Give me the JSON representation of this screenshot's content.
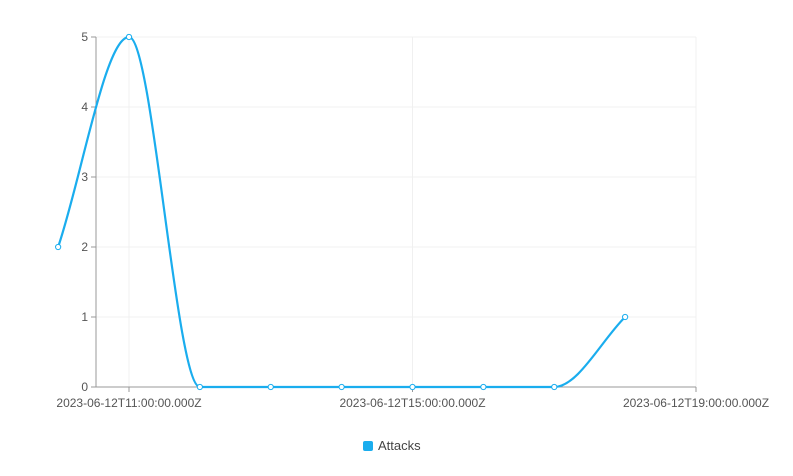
{
  "chart_data": {
    "type": "line",
    "title": "",
    "xlabel": "",
    "ylabel": "",
    "x": [
      "2023-06-12T10:00:00.000Z",
      "2023-06-12T11:00:00.000Z",
      "2023-06-12T12:00:00.000Z",
      "2023-06-12T13:00:00.000Z",
      "2023-06-12T14:00:00.000Z",
      "2023-06-12T15:00:00.000Z",
      "2023-06-12T16:00:00.000Z",
      "2023-06-12T17:00:00.000Z",
      "2023-06-12T18:00:00.000Z"
    ],
    "series": [
      {
        "name": "Attacks",
        "color": "#1AADEE",
        "values": [
          2,
          5,
          0,
          0,
          0,
          0,
          0,
          0,
          1
        ]
      }
    ],
    "x_ticks": [
      "2023-06-12T11:00:00.000Z",
      "2023-06-12T15:00:00.000Z",
      "2023-06-12T19:00:00.000Z"
    ],
    "y_ticks": [
      0,
      1,
      2,
      3,
      4,
      5
    ],
    "ylim": [
      0,
      5
    ],
    "grid": true,
    "smooth": true,
    "legend": {
      "position": "bottom-center",
      "items": [
        "Attacks"
      ]
    }
  }
}
